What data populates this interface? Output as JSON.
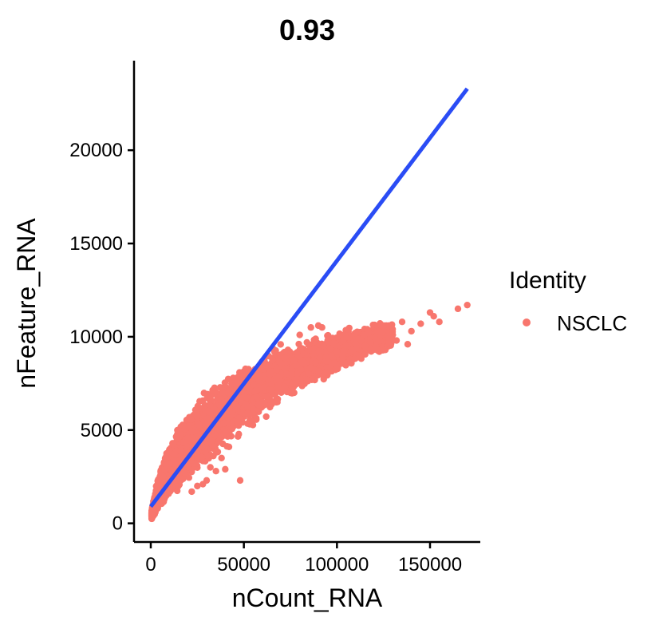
{
  "chart_data": {
    "type": "scatter",
    "title": "0.93",
    "xlabel": "nCount_RNA",
    "ylabel": "nFeature_RNA",
    "xlim": [
      -9000,
      177000
    ],
    "ylim": [
      -1000,
      24800
    ],
    "x_ticks": [
      0,
      50000,
      100000,
      150000
    ],
    "x_tick_labels": [
      "0",
      "50000",
      "100000",
      "150000"
    ],
    "y_ticks": [
      0,
      5000,
      10000,
      15000,
      20000
    ],
    "y_tick_labels": [
      "0",
      "5000",
      "10000",
      "15000",
      "20000"
    ],
    "grid": false,
    "legend": {
      "title": "Identity",
      "position": "right",
      "entries": [
        {
          "name": "NSCLC",
          "color": "#F8766D"
        }
      ]
    },
    "series": [
      {
        "name": "NSCLC",
        "color": "#F8766D",
        "density_curve": {
          "x": [
            500,
            2000,
            5000,
            10000,
            20000,
            30000,
            40000,
            55000,
            70000,
            90000,
            110000,
            130000
          ],
          "y_low": [
            200,
            350,
            700,
            1200,
            2200,
            3000,
            3900,
            5000,
            6300,
            7400,
            8400,
            9200
          ],
          "y_high": [
            700,
            1600,
            3000,
            4500,
            6200,
            7200,
            8000,
            9000,
            9800,
            10200,
            10700,
            11000
          ]
        },
        "points": [
          [
            135000,
            10800
          ],
          [
            140000,
            10300
          ],
          [
            145000,
            10700
          ],
          [
            150000,
            11300
          ],
          [
            152000,
            11100
          ],
          [
            155000,
            10800
          ],
          [
            165000,
            11500
          ],
          [
            170000,
            11700
          ],
          [
            110000,
            9600
          ],
          [
            115000,
            10100
          ],
          [
            118000,
            9700
          ],
          [
            122000,
            10300
          ],
          [
            125000,
            10600
          ],
          [
            128000,
            9900
          ],
          [
            130000,
            10100
          ],
          [
            132000,
            9800
          ],
          [
            128000,
            10600
          ],
          [
            138000,
            9600
          ],
          [
            126000,
            9300
          ],
          [
            112000,
            9000
          ],
          [
            108000,
            9300
          ],
          [
            100000,
            9200
          ],
          [
            103000,
            8800
          ],
          [
            95000,
            9800
          ],
          [
            90000,
            10600
          ],
          [
            92000,
            10500
          ],
          [
            86000,
            10500
          ],
          [
            80000,
            10100
          ],
          [
            106000,
            10400
          ],
          [
            117000,
            10200
          ],
          [
            45000,
            6400
          ],
          [
            48000,
            5600
          ],
          [
            52000,
            5900
          ],
          [
            55000,
            6100
          ],
          [
            60000,
            6500
          ],
          [
            62000,
            6800
          ],
          [
            65000,
            7100
          ],
          [
            68000,
            6500
          ],
          [
            72000,
            7300
          ],
          [
            75000,
            7000
          ],
          [
            78000,
            7600
          ],
          [
            35000,
            2800
          ],
          [
            30000,
            2300
          ],
          [
            40000,
            2900
          ],
          [
            48000,
            2300
          ],
          [
            38000,
            3500
          ],
          [
            42000,
            4100
          ],
          [
            25000,
            2000
          ],
          [
            22000,
            1700
          ],
          [
            28000,
            2100
          ],
          [
            32000,
            3000
          ]
        ],
        "fit_line": {
          "x": [
            0,
            170000
          ],
          "y": [
            900,
            23300
          ]
        }
      }
    ]
  }
}
